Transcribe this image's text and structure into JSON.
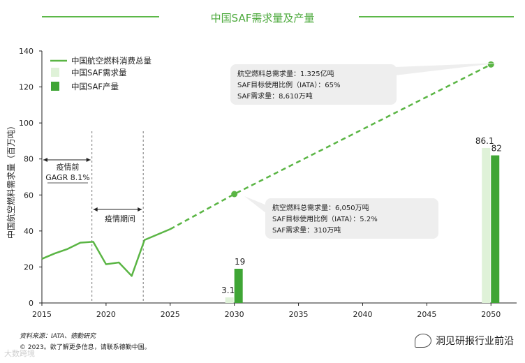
{
  "colors": {
    "line": "#5ab544",
    "demand_bar": "#dff2d8",
    "production_bar": "#3fa535",
    "annotation_bg": "#eeeeee",
    "title": "#4aa83a"
  },
  "chart_data": {
    "type": "line",
    "title": "中国SAF需求量及产量",
    "ylabel": "中国航空燃料需求量（百万吨）",
    "xlabel": "",
    "xlim": [
      2015,
      2052
    ],
    "ylim": [
      0,
      140
    ],
    "x_ticks": [
      2015,
      2020,
      2025,
      2030,
      2035,
      2040,
      2045,
      2050
    ],
    "y_ticks": [
      0,
      20,
      40,
      60,
      80,
      100,
      120,
      140
    ],
    "legend": [
      {
        "name": "中国航空燃料消费总量",
        "kind": "line"
      },
      {
        "name": "中国SAF需求量",
        "kind": "bar-light"
      },
      {
        "name": "中国SAF产量",
        "kind": "bar-dark"
      }
    ],
    "series": [
      {
        "name": "中国航空燃料消费总量",
        "style": "solid",
        "x": [
          2015,
          2016,
          2017,
          2018,
          2019,
          2020,
          2021,
          2022,
          2023,
          2024,
          2025
        ],
        "values": [
          24.5,
          27.5,
          30,
          33.5,
          34,
          21.5,
          22.5,
          15,
          35,
          38,
          41
        ]
      },
      {
        "name": "中国航空燃料消费总量（预测）",
        "style": "dashed",
        "x": [
          2025,
          2030,
          2050
        ],
        "values": [
          41,
          60.5,
          132.5
        ]
      }
    ],
    "markers": [
      {
        "x": 2030,
        "y": 60.5
      },
      {
        "x": 2050,
        "y": 132.5
      }
    ],
    "bars": [
      {
        "x": 2030,
        "demand": 3.1,
        "production": 19,
        "demand_label": "3.1",
        "production_label": "19"
      },
      {
        "x": 2050,
        "demand": 86.1,
        "production": 82,
        "demand_label": "86.1",
        "production_label": "82"
      }
    ],
    "phase_lines": [
      2018.9,
      2022.9
    ],
    "phases": [
      {
        "label": "疫情前",
        "sublabel": "GAGR 8.1%",
        "from": 2015,
        "to": 2018.9
      },
      {
        "label": "疫情期间",
        "from": 2018.9,
        "to": 2022.9
      }
    ],
    "annotations": [
      {
        "lines": [
          "航空燃料总需求量：1.325亿吨",
          "SAF目标使用比例（IATA）：65%",
          "SAF需求量：8,610万吨"
        ]
      },
      {
        "lines": [
          "航空燃料总需求量：6,050万吨",
          "SAF目标使用比例（IATA）：5.2%",
          "SAF需求量：310万吨"
        ]
      }
    ]
  },
  "footer": {
    "source": "资料来源：IATA、德勤研究",
    "copyright": "© 2023。欲了解更多信息，请联系德勤中国。"
  },
  "brand": {
    "name": "洞见研报行业前沿"
  },
  "watermark": "大数跨境"
}
